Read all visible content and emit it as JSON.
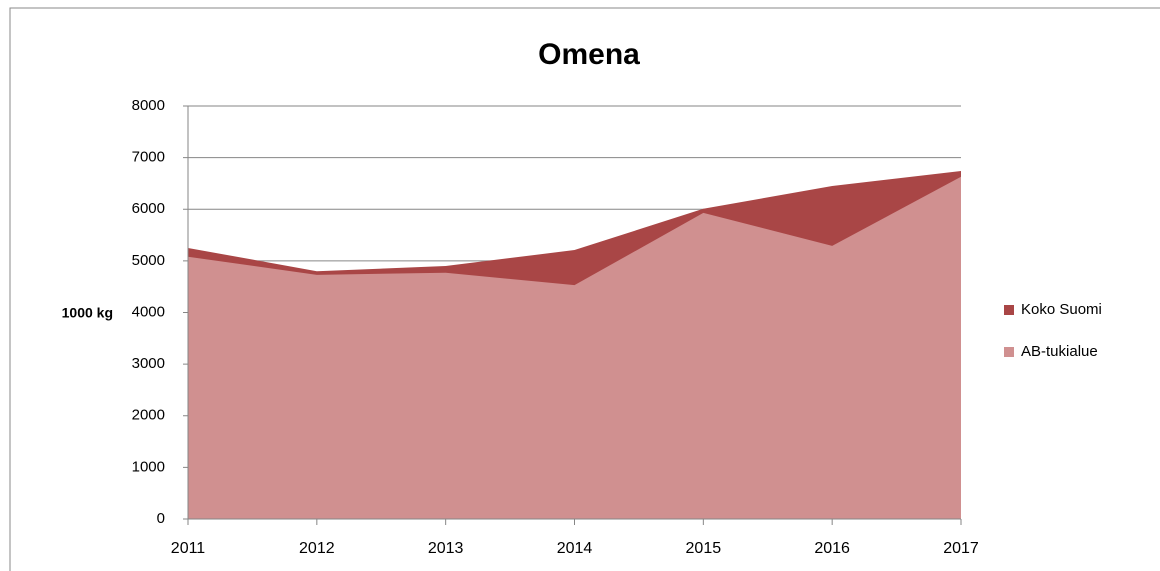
{
  "chart_data": {
    "type": "area",
    "title": "Omena",
    "y_label": "1000 kg",
    "categories": [
      "2011",
      "2012",
      "2013",
      "2014",
      "2015",
      "2016",
      "2017"
    ],
    "series": [
      {
        "name": "Koko Suomi",
        "color": "#a94646",
        "values": [
          5250,
          4800,
          4900,
          5210,
          6010,
          6450,
          6740
        ]
      },
      {
        "name": "AB-tukialue",
        "color": "#d09090",
        "values": [
          5080,
          4730,
          4770,
          4530,
          5930,
          5290,
          6630
        ]
      }
    ],
    "ylim": [
      0,
      8000
    ],
    "yticks": [
      0,
      1000,
      2000,
      3000,
      4000,
      5000,
      6000,
      7000,
      8000
    ],
    "grid": true,
    "legend": "right"
  }
}
